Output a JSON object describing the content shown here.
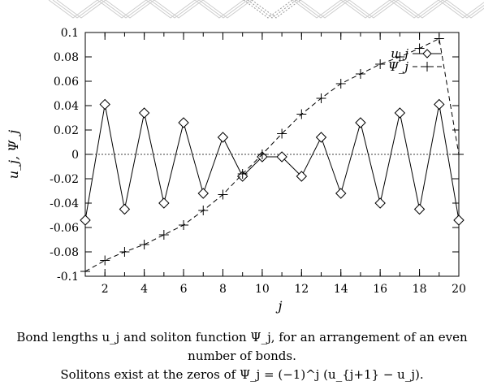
{
  "chart_data": {
    "type": "line",
    "x": [
      1,
      2,
      3,
      4,
      5,
      6,
      7,
      8,
      9,
      10,
      11,
      12,
      13,
      14,
      15,
      16,
      17,
      18,
      19,
      20
    ],
    "xticks": [
      2,
      4,
      6,
      8,
      10,
      12,
      14,
      16,
      18,
      20
    ],
    "xlim": [
      1,
      20
    ],
    "ylim": [
      -0.1,
      0.1
    ],
    "yticks": [
      -0.1,
      -0.08,
      -0.06,
      -0.04,
      -0.02,
      0,
      0.02,
      0.04,
      0.06,
      0.08,
      0.1
    ],
    "ytick_labels": [
      "-0.1",
      "-0.08",
      "-0.06",
      "-0.04",
      "-0.02",
      "0",
      "0.02",
      "0.04",
      "0.06",
      "0.08",
      "0.1"
    ],
    "xlabel": "j",
    "ylabel": "u_j, Ψ_j",
    "zero_line": true,
    "legend_position": "top-right",
    "series": [
      {
        "name": "u_j",
        "marker": "diamond",
        "line": "solid",
        "values": [
          -0.054,
          0.041,
          -0.045,
          0.034,
          -0.04,
          0.026,
          -0.032,
          0.014,
          -0.018,
          -0.002,
          -0.002,
          -0.018,
          0.014,
          -0.032,
          0.026,
          -0.04,
          0.034,
          -0.045,
          0.041,
          -0.054
        ]
      },
      {
        "name": "Ψ_j",
        "marker": "plus",
        "line": "dashed",
        "values": [
          -0.096,
          -0.087,
          -0.08,
          -0.074,
          -0.066,
          -0.058,
          -0.046,
          -0.033,
          -0.016,
          0.0,
          0.017,
          0.033,
          0.046,
          0.058,
          0.066,
          0.074,
          0.08,
          0.087,
          0.095,
          0.0
        ]
      }
    ]
  },
  "caption": {
    "line1": "Bond lengths u_j and soliton function Ψ_j, for an arrangement of an even number of bonds.",
    "line2": "Solitons exist at the zeros of Ψ_j = (−1)^j (u_{j+1} − u_j)."
  }
}
